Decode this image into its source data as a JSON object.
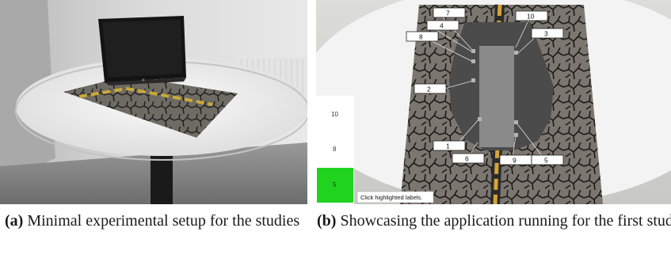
{
  "figure": {
    "panel_a": {
      "caption_tag": "(a)",
      "caption_text": "Minimal experimental setup for the studies"
    },
    "panel_b": {
      "caption_tag": "(b)",
      "caption_text": "Showcasing the application running for the first study",
      "labels": [
        "7",
        "4",
        "8",
        "10",
        "3",
        "2",
        "1",
        "6",
        "9",
        "5"
      ],
      "side_panel": {
        "values": [
          "10",
          "8",
          "5"
        ],
        "highlight_color": "#1fd31f"
      },
      "status_text": "Click highlighted labels."
    }
  }
}
